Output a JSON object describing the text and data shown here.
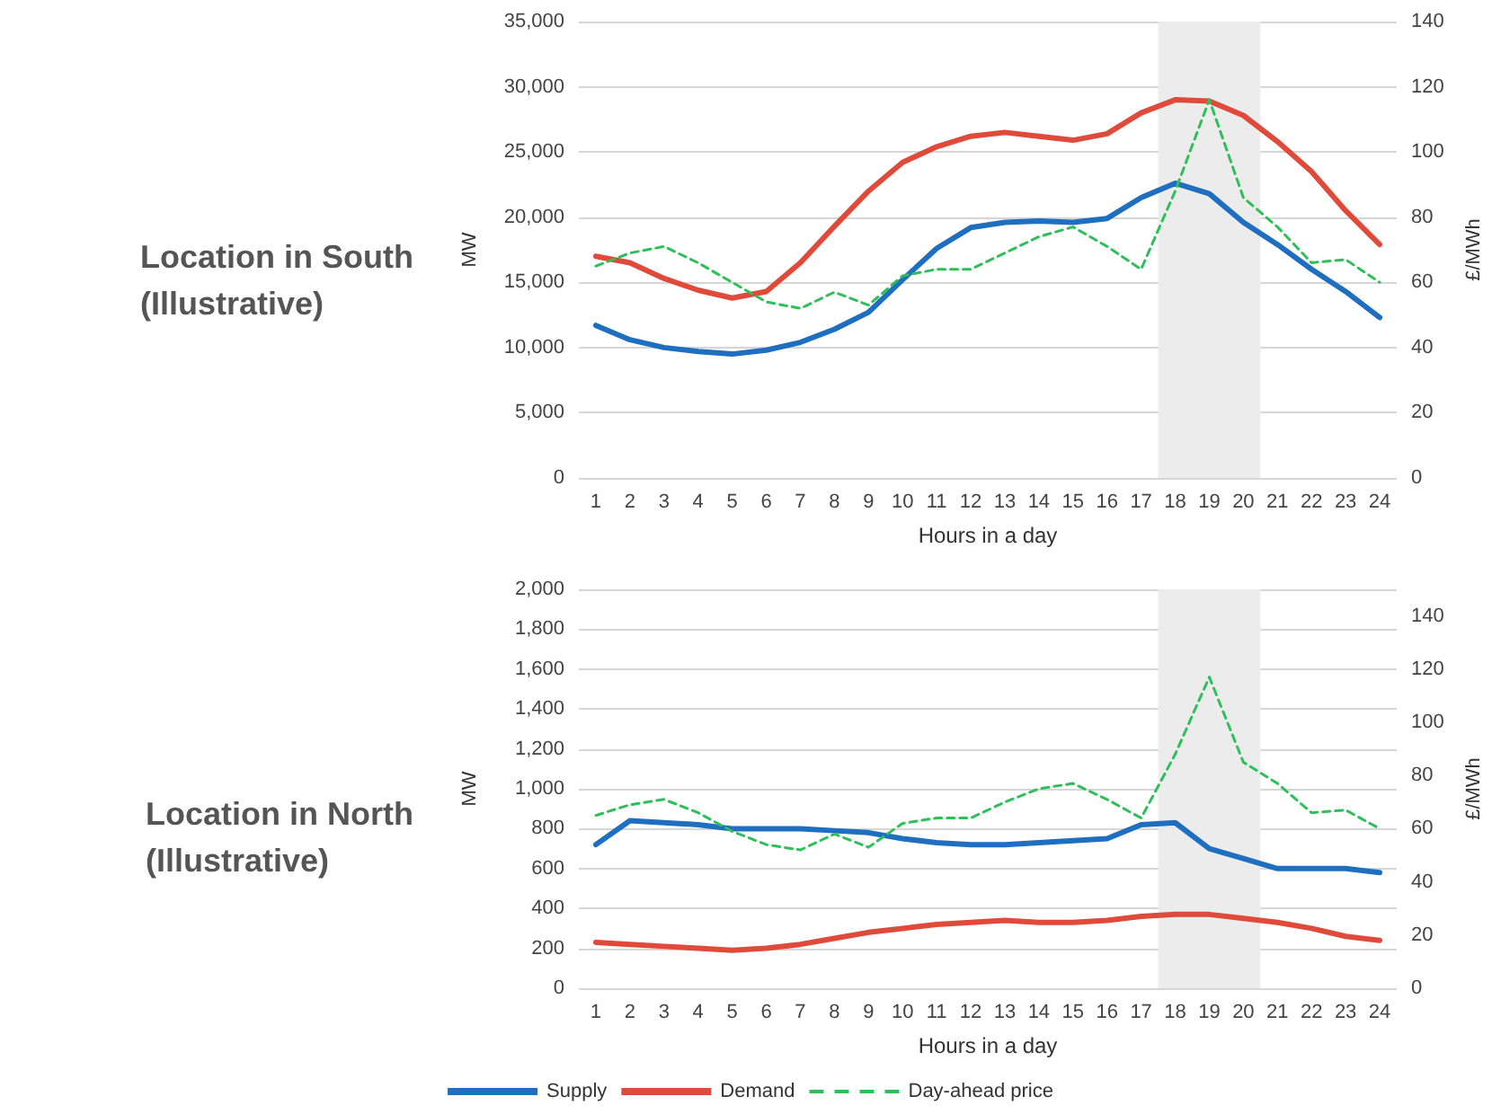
{
  "chart_data": [
    {
      "type": "line",
      "title": "Location in South\n(Illustrative)",
      "xlabel": "Hours in a day",
      "ylabel": "MW",
      "y2label": "£/MWh",
      "x": [
        1,
        2,
        3,
        4,
        5,
        6,
        7,
        8,
        9,
        10,
        11,
        12,
        13,
        14,
        15,
        16,
        17,
        18,
        19,
        20,
        21,
        22,
        23,
        24
      ],
      "series": [
        {
          "color": "#1f6fc1",
          "line_style": "solid",
          "values": [
            11700,
            10600,
            10000,
            9700,
            9500,
            9800,
            10400,
            11400,
            12700,
            15200,
            17600,
            19200,
            19600,
            19700,
            19600,
            19900,
            21500,
            22600,
            21800,
            19600,
            17900,
            16000,
            14300,
            12300
          ]
        },
        {
          "color": "#e04a3a",
          "line_style": "solid",
          "values": [
            17000,
            16500,
            15300,
            14400,
            13800,
            14300,
            16500,
            19300,
            22000,
            24200,
            25400,
            26200,
            26500,
            26200,
            25900,
            26400,
            28000,
            29000,
            28900,
            27800,
            25800,
            23500,
            20500,
            17900
          ]
        },
        {
          "color": "#2fbf5a",
          "line_style": "dashed",
          "axis": "y2",
          "values": [
            65,
            69,
            71,
            66,
            60,
            54,
            52,
            57,
            53,
            62,
            64,
            64,
            69,
            74,
            77,
            71,
            64,
            88,
            116,
            86,
            77,
            66,
            67,
            60
          ]
        }
      ],
      "xlim": [
        0.5,
        24.5
      ],
      "xticks": [
        1,
        2,
        3,
        4,
        5,
        6,
        7,
        8,
        9,
        10,
        11,
        12,
        13,
        14,
        15,
        16,
        17,
        18,
        19,
        20,
        21,
        22,
        23,
        24
      ],
      "ylim": [
        0,
        35000
      ],
      "yticks": [
        {
          "value": 0,
          "label": "0"
        },
        {
          "value": 5000,
          "label": "5,000"
        },
        {
          "value": 10000,
          "label": "10,000"
        },
        {
          "value": 15000,
          "label": "15,000"
        },
        {
          "value": 20000,
          "label": "20,000"
        },
        {
          "value": 25000,
          "label": "25,000"
        },
        {
          "value": 30000,
          "label": "30,000"
        },
        {
          "value": 35000,
          "label": "35,000"
        }
      ],
      "y2lim": [
        0,
        140
      ],
      "y2ticks": [
        0,
        20,
        40,
        60,
        80,
        100,
        120,
        140
      ],
      "bands": [
        {
          "axis": "x",
          "from": 17.5,
          "to": 20.5,
          "color": "#ececec"
        }
      ],
      "grid": "y",
      "legend": false,
      "marker": "none"
    },
    {
      "type": "line",
      "title": "Location in North\n(Illustrative)",
      "xlabel": "Hours in a day",
      "ylabel": "MW",
      "y2label": "£/MWh",
      "x": [
        1,
        2,
        3,
        4,
        5,
        6,
        7,
        8,
        9,
        10,
        11,
        12,
        13,
        14,
        15,
        16,
        17,
        18,
        19,
        20,
        21,
        22,
        23,
        24
      ],
      "series": [
        {
          "name": "Supply",
          "color": "#1f6fc1",
          "line_style": "solid",
          "values": [
            720,
            840,
            830,
            820,
            800,
            800,
            800,
            790,
            780,
            750,
            730,
            720,
            720,
            730,
            740,
            750,
            820,
            830,
            700,
            650,
            600,
            600,
            600,
            580
          ]
        },
        {
          "name": "Demand",
          "color": "#e04a3a",
          "line_style": "solid",
          "values": [
            230,
            220,
            210,
            200,
            190,
            200,
            220,
            250,
            280,
            300,
            320,
            330,
            340,
            330,
            330,
            340,
            360,
            370,
            370,
            350,
            330,
            300,
            260,
            240
          ]
        },
        {
          "name": "Day-ahead price",
          "color": "#2fbf5a",
          "line_style": "dashed",
          "axis": "y2",
          "values": [
            65,
            69,
            71,
            66,
            59,
            54,
            52,
            58,
            53,
            62,
            64,
            64,
            70,
            75,
            77,
            71,
            64,
            88,
            117,
            85,
            77,
            66,
            67,
            60
          ]
        }
      ],
      "xlim": [
        0.5,
        24.5
      ],
      "xticks": [
        1,
        2,
        3,
        4,
        5,
        6,
        7,
        8,
        9,
        10,
        11,
        12,
        13,
        14,
        15,
        16,
        17,
        18,
        19,
        20,
        21,
        22,
        23,
        24
      ],
      "ylim": [
        0,
        2000
      ],
      "yticks": [
        {
          "value": 0,
          "label": "0"
        },
        {
          "value": 200,
          "label": "200"
        },
        {
          "value": 400,
          "label": "400"
        },
        {
          "value": 600,
          "label": "600"
        },
        {
          "value": 800,
          "label": "800"
        },
        {
          "value": 1000,
          "label": "1,000"
        },
        {
          "value": 1200,
          "label": "1,200"
        },
        {
          "value": 1400,
          "label": "1,400"
        },
        {
          "value": 1600,
          "label": "1,600"
        },
        {
          "value": 1800,
          "label": "1,800"
        },
        {
          "value": 2000,
          "label": "2,000"
        }
      ],
      "y2lim": [
        0,
        150
      ],
      "y2ticks": [
        0,
        20,
        40,
        60,
        80,
        100,
        120,
        140
      ],
      "bands": [
        {
          "axis": "x",
          "from": 17.5,
          "to": 20.5,
          "color": "#ececec"
        }
      ],
      "grid": "y",
      "legend": "bottom",
      "marker": "none"
    }
  ]
}
